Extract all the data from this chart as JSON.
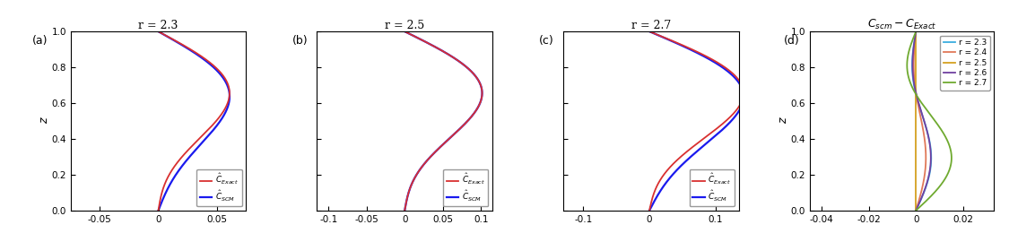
{
  "panels": [
    {
      "label": "(a)",
      "r": 2.3,
      "xlim": [
        -0.075,
        0.075
      ],
      "xticks": [
        -0.05,
        0,
        0.05
      ]
    },
    {
      "label": "(b)",
      "r": 2.5,
      "xlim": [
        -0.115,
        0.115
      ],
      "xticks": [
        -0.1,
        -0.05,
        0,
        0.05,
        0.1
      ]
    },
    {
      "label": "(c)",
      "r": 2.7,
      "xlim": [
        -0.13,
        0.135
      ],
      "xticks": [
        -0.1,
        0,
        0.1
      ]
    }
  ],
  "panel_d": {
    "label": "(d)",
    "title": "$C_{scm} - C_{Exact}$",
    "xlim": [
      -0.045,
      0.033
    ],
    "xticks": [
      -0.04,
      -0.02,
      0,
      0.02
    ],
    "r_values": [
      2.3,
      2.4,
      2.5,
      2.6,
      2.7
    ],
    "colors": [
      "#3aacdf",
      "#e07858",
      "#d4a020",
      "#7040a0",
      "#6faa30"
    ]
  },
  "ylim": [
    0,
    1
  ],
  "yticks": [
    0,
    0.2,
    0.4,
    0.6,
    0.8,
    1.0
  ],
  "color_exact": "#d93030",
  "color_scm": "#1a1aee"
}
